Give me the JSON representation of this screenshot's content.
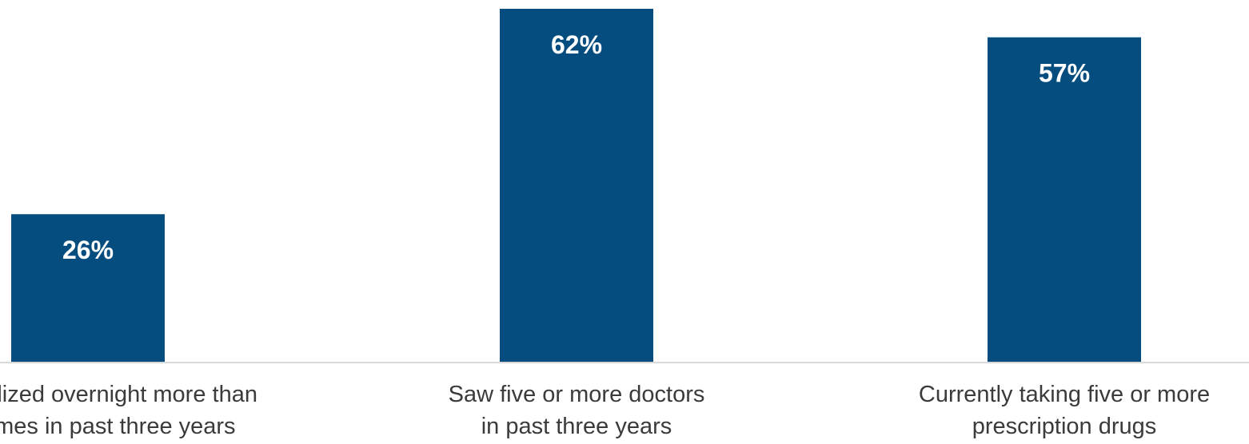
{
  "chart_data": {
    "type": "bar",
    "categories": [
      [
        "Hospitalized overnight more than",
        "two times in past three years"
      ],
      [
        "Saw five or more doctors",
        "in past three years"
      ],
      [
        "Currently taking five or more",
        "prescription drugs"
      ]
    ],
    "values": [
      26,
      62,
      57
    ],
    "value_labels": [
      "26%",
      "62%",
      "57%"
    ],
    "bar_color": "#064d7f",
    "ylim": [
      0,
      65
    ],
    "grid": false,
    "legend": "none",
    "title": "",
    "xlabel": "",
    "ylabel": ""
  }
}
